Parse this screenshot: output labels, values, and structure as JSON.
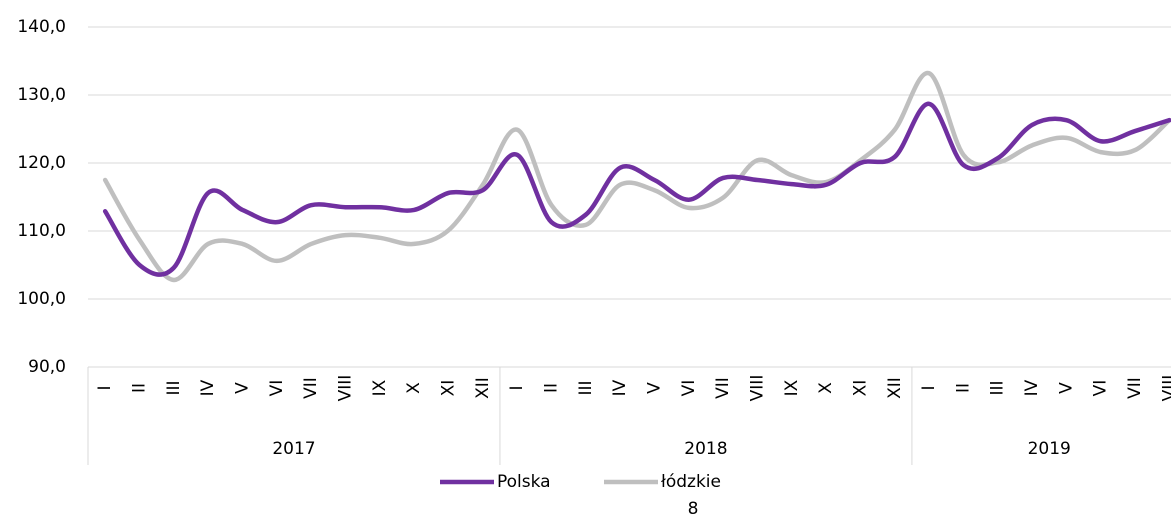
{
  "chart_data": {
    "type": "line",
    "category_groups": [
      {
        "name": "2017",
        "categories": [
          "I",
          "II",
          "III",
          "IV",
          "V",
          "VI",
          "VII",
          "VIII",
          "IX",
          "X",
          "XI",
          "XII"
        ]
      },
      {
        "name": "2018",
        "categories": [
          "I",
          "II",
          "III",
          "IV",
          "V",
          "VI",
          "VII",
          "VIII",
          "IX",
          "X",
          "XI",
          "XII"
        ]
      },
      {
        "name": "2019",
        "categories": [
          "I",
          "II",
          "III",
          "IV",
          "V",
          "VI",
          "VII",
          "VIII"
        ]
      }
    ],
    "series": [
      {
        "name": "Polska",
        "color": "#7030a0",
        "values": [
          112.9,
          105.0,
          104.6,
          115.6,
          113.1,
          111.3,
          113.8,
          113.5,
          113.5,
          113.1,
          115.6,
          116.0,
          121.2,
          111.3,
          112.4,
          119.3,
          117.5,
          114.6,
          117.8,
          117.5,
          116.9,
          116.8,
          120.0,
          120.9,
          128.7,
          119.7,
          120.7,
          125.6,
          126.3,
          123.2,
          124.7,
          126.3
        ]
      },
      {
        "name": "łódzkie",
        "color": "#bfbfbf",
        "values": [
          117.5,
          108.7,
          102.8,
          108.1,
          108.1,
          105.6,
          108.1,
          109.4,
          109.0,
          108.1,
          110.1,
          116.8,
          124.9,
          113.8,
          110.9,
          116.8,
          116.0,
          113.4,
          114.9,
          120.4,
          118.2,
          117.2,
          120.4,
          124.9,
          133.2,
          121.2,
          120.1,
          122.6,
          123.7,
          121.6,
          121.9,
          126.3
        ]
      }
    ],
    "ylim": [
      90,
      140
    ],
    "yticks": [
      {
        "value": 90,
        "label": "90,0"
      },
      {
        "value": 100,
        "label": "100,0"
      },
      {
        "value": 110,
        "label": "110,0"
      },
      {
        "value": 120,
        "label": "120,0"
      },
      {
        "value": 130,
        "label": "130,0"
      },
      {
        "value": 140,
        "label": "140,0"
      }
    ],
    "grid": true,
    "legend": "bottom"
  },
  "page_number": "8"
}
